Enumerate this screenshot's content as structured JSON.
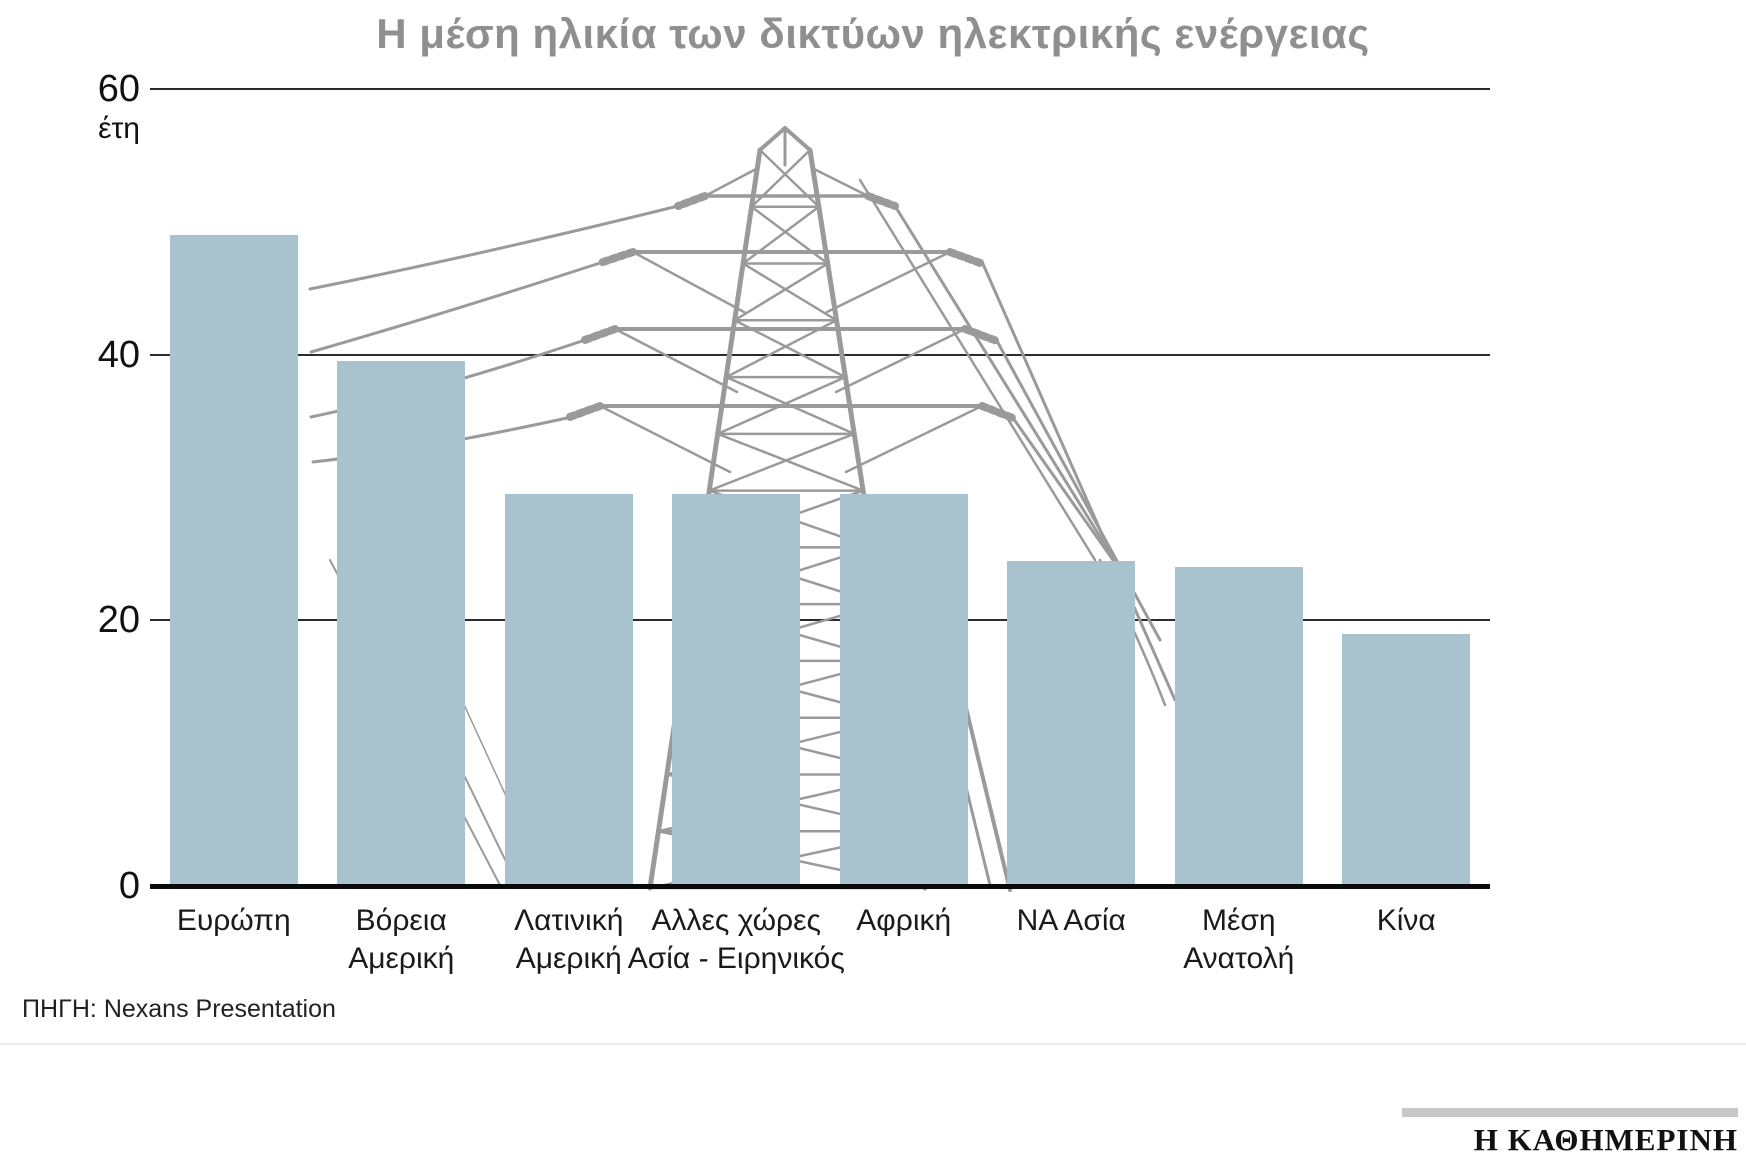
{
  "title": "Η μέση ηλικία των δικτύων ηλεκτρικής ενέργειας",
  "source": "ΠΗΓΗ: Nexans Presentation",
  "brand": "Η ΚΑΘΗΜΕΡΙΝΗ",
  "colors": {
    "bar": "#a9c3ce",
    "title": "#8f8f8f",
    "grid": "#2b2b2b",
    "axis": "#0a0a0a",
    "pylon": "#9a9a9a"
  },
  "chart_data": {
    "type": "bar",
    "title": "Η μέση ηλικία των δικτύων ηλεκτρικής ενέργειας",
    "unit_label": "έτη",
    "categories": [
      "Ευρώπη",
      "Βόρεια\nΑμερική",
      "Λατινική\nΑμερική",
      "Αλλες χώρες\nΑσία - Ειρηνικός",
      "Αφρική",
      "ΝΑ Ασία",
      "Μέση\nΑνατολή",
      "Κίνα"
    ],
    "values": [
      49,
      39.5,
      29.5,
      29.5,
      29.5,
      24.5,
      24,
      19
    ],
    "yticks": [
      0,
      20,
      40,
      60
    ],
    "ylim": [
      0,
      60
    ],
    "ylabel": "έτη",
    "xlabel": "",
    "grid": true,
    "legend": false,
    "annotation": "decorative electricity transmission tower illustration behind bars"
  }
}
